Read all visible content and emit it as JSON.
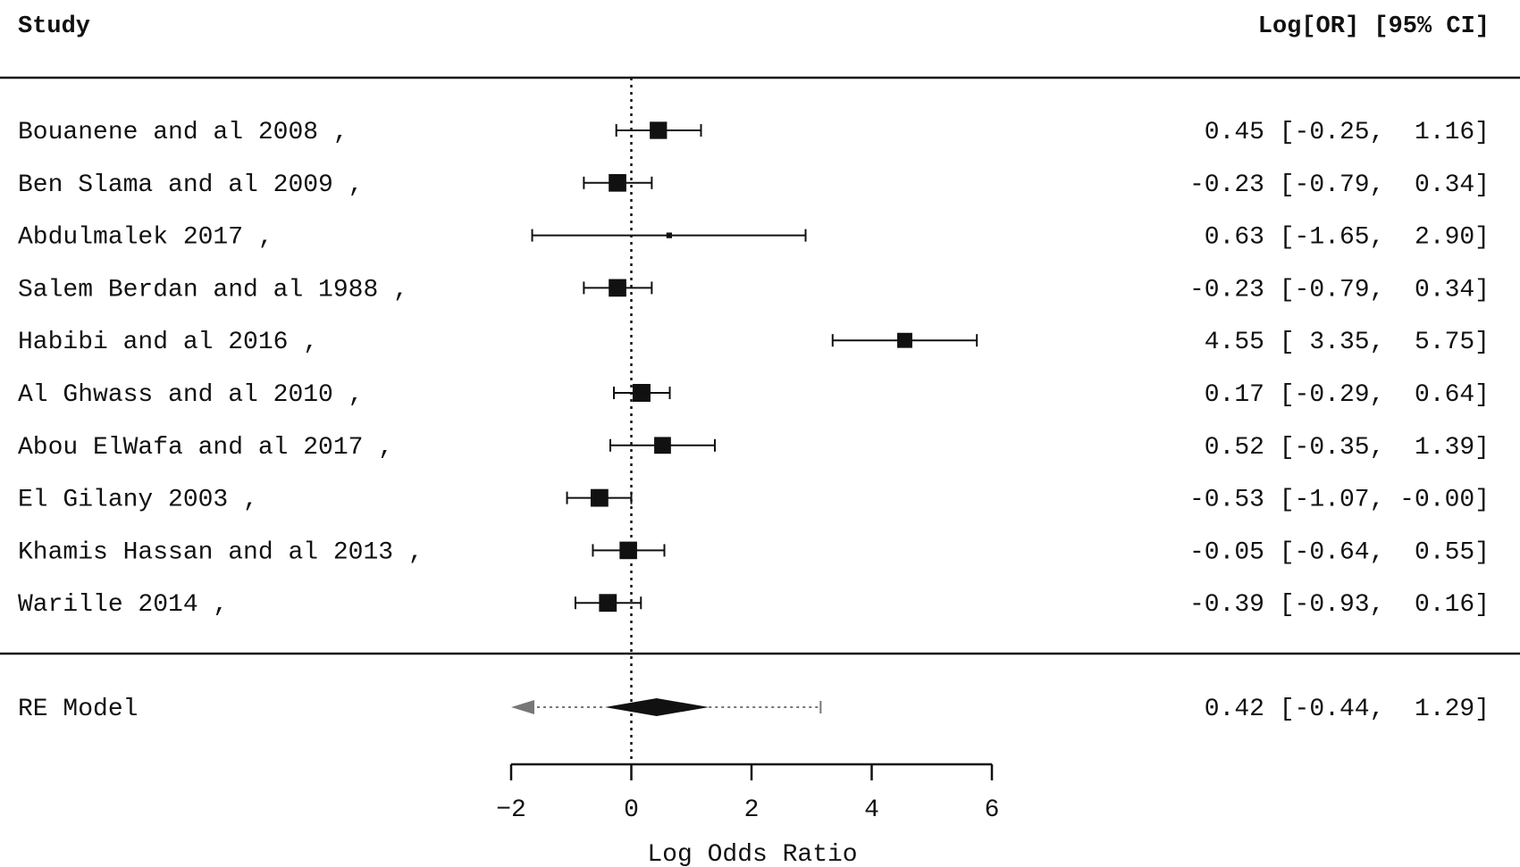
{
  "chart_data": {
    "type": "forest",
    "header": {
      "study_label": "Study",
      "estimate_label": "Log[OR] [95% CI]"
    },
    "xlabel": "Log Odds Ratio",
    "xlim": [
      -2,
      6
    ],
    "xticks": [
      -2,
      0,
      2,
      4,
      6
    ],
    "tick_labels": [
      "−2",
      "0",
      "2",
      "4",
      "6"
    ],
    "reference_line": 0,
    "studies": [
      {
        "name": "Bouanene and al 2008 ,",
        "est": 0.45,
        "lo": -0.25,
        "hi": 1.16,
        "weight": 9.4,
        "text": "0.45 [-0.25,  1.16]"
      },
      {
        "name": "Ben Slama and al 2009 ,",
        "est": -0.23,
        "lo": -0.79,
        "hi": 0.34,
        "weight": 9.8,
        "text": "-0.23 [-0.79,  0.34]"
      },
      {
        "name": "Abdulmalek 2017 ,",
        "est": 0.63,
        "lo": -1.65,
        "hi": 2.9,
        "weight": 1.0,
        "text": "0.63 [-1.65,  2.90]"
      },
      {
        "name": "Salem Berdan and al 1988 ,",
        "est": -0.23,
        "lo": -0.79,
        "hi": 0.34,
        "weight": 9.8,
        "text": "-0.23 [-0.79,  0.34]"
      },
      {
        "name": "Habibi and al 2016 ,",
        "est": 4.55,
        "lo": 3.35,
        "hi": 5.75,
        "weight": 7.2,
        "text": "4.55 [ 3.35,  5.75]"
      },
      {
        "name": "Al Ghwass and al 2010 ,",
        "est": 0.17,
        "lo": -0.29,
        "hi": 0.64,
        "weight": 10.1,
        "text": "0.17 [-0.29,  0.64]"
      },
      {
        "name": "Abou ElWafa and al 2017 ,",
        "est": 0.52,
        "lo": -0.35,
        "hi": 1.39,
        "weight": 8.9,
        "text": "0.52 [-0.35,  1.39]"
      },
      {
        "name": "El Gilany 2003 ,",
        "est": -0.53,
        "lo": -1.07,
        "hi": -0.0,
        "weight": 9.9,
        "text": "-0.53 [-1.07, -0.00]"
      },
      {
        "name": "Khamis Hassan and al 2013 ,",
        "est": -0.05,
        "lo": -0.64,
        "hi": 0.55,
        "weight": 9.7,
        "text": "-0.05 [-0.64,  0.55]"
      },
      {
        "name": "Warille 2014 ,",
        "est": -0.39,
        "lo": -0.93,
        "hi": 0.16,
        "weight": 9.9,
        "text": "-0.39 [-0.93,  0.16]"
      }
    ],
    "summary": {
      "name": "RE Model",
      "est": 0.42,
      "lo": -0.44,
      "hi": 1.29,
      "pi_lo": -2.0,
      "pi_hi": 3.15,
      "text": "0.42 [-0.44,  1.29]"
    },
    "colors": {
      "ink": "#111111",
      "prediction_interval": "#777777"
    }
  }
}
